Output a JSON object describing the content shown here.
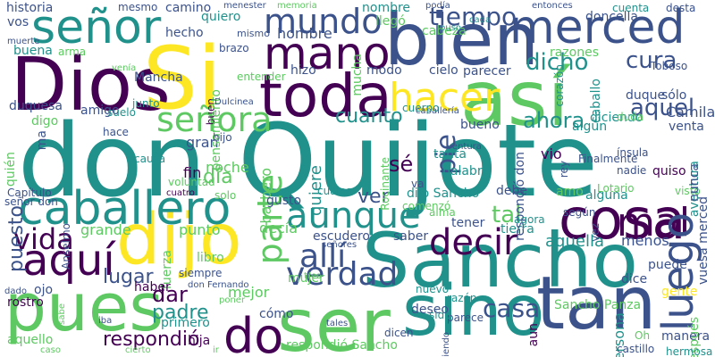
{
  "palette": {
    "background": "#ffffff",
    "colors": [
      "#440154",
      "#3b528b",
      "#21918c",
      "#5ec962",
      "#fde725"
    ]
  },
  "words": [
    {
      "text": "don Quijote",
      "color": "#21918c"
    },
    {
      "text": "Sancho",
      "color": "#21918c"
    },
    {
      "text": "Dios",
      "color": "#440154"
    },
    {
      "text": "Si",
      "color": "#fde725"
    },
    {
      "text": "bien",
      "color": "#3b528b"
    },
    {
      "text": "así",
      "color": "#5ec962"
    },
    {
      "text": "toda",
      "color": "#440154"
    },
    {
      "text": "señor",
      "color": "#21918c"
    },
    {
      "text": "merced",
      "color": "#3b528b"
    },
    {
      "text": "mano",
      "color": "#440154"
    },
    {
      "text": "mundo",
      "color": "#3b528b"
    },
    {
      "text": "dijo",
      "color": "#fde725"
    },
    {
      "text": "pues",
      "color": "#5ec962"
    },
    {
      "text": "ser",
      "color": "#5ec962"
    },
    {
      "text": "sino",
      "color": "#21918c"
    },
    {
      "text": "tan",
      "color": "#3b528b"
    },
    {
      "text": "cosa",
      "color": "#440154"
    },
    {
      "text": "caballero",
      "color": "#21918c"
    },
    {
      "text": "aunque",
      "color": "#21918c"
    },
    {
      "text": "hacer",
      "color": "#fde725"
    },
    {
      "text": "señora",
      "color": "#5ec962"
    },
    {
      "text": "aquí",
      "color": "#440154"
    },
    {
      "text": "vida",
      "color": "#440154"
    },
    {
      "text": "decir",
      "color": "#440154"
    },
    {
      "text": "verdad",
      "color": "#3b528b"
    },
    {
      "text": "allí",
      "color": "#3b528b"
    },
    {
      "text": "mal",
      "color": "#440154"
    },
    {
      "text": "luego",
      "color": "#3b528b"
    },
    {
      "text": "do",
      "color": "#440154"
    },
    {
      "text": "tiempo",
      "color": "#3b528b"
    },
    {
      "text": "parte",
      "color": "#5ec962"
    },
    {
      "text": "dicho",
      "color": "#21918c"
    },
    {
      "text": "cura",
      "color": "#3b528b"
    },
    {
      "text": "aquel",
      "color": "#3b528b"
    },
    {
      "text": "ahora",
      "color": "#21918c"
    },
    {
      "text": "cuanto",
      "color": "#21918c"
    },
    {
      "text": "pie",
      "color": "#3b528b"
    },
    {
      "text": "puesto",
      "color": "#3b528b"
    },
    {
      "text": "quiere",
      "color": "#21918c"
    },
    {
      "text": "sé",
      "color": "#440154"
    },
    {
      "text": "ver",
      "color": "#3b528b"
    },
    {
      "text": "tal",
      "color": "#5ec962"
    },
    {
      "text": "casa",
      "color": "#3b528b"
    },
    {
      "text": "padre",
      "color": "#21918c"
    },
    {
      "text": "dar",
      "color": "#440154"
    },
    {
      "text": "respondió",
      "color": "#440154"
    },
    {
      "text": "día",
      "color": "#5ec962"
    },
    {
      "text": "lugar",
      "color": "#3b528b"
    },
    {
      "text": "historia",
      "color": "#3b528b"
    },
    {
      "text": "vos",
      "color": "#3b528b"
    },
    {
      "text": "buena",
      "color": "#21918c"
    },
    {
      "text": "duquesa",
      "color": "#3b528b"
    },
    {
      "text": "digo",
      "color": "#5ec962"
    },
    {
      "text": "hecho",
      "color": "#3b528b"
    },
    {
      "text": "hombre",
      "color": "#3b528b"
    },
    {
      "text": "hizo",
      "color": "#3b528b"
    },
    {
      "text": "modo",
      "color": "#3b528b"
    },
    {
      "text": "cielo",
      "color": "#3b528b"
    },
    {
      "text": "parecer",
      "color": "#3b528b"
    },
    {
      "text": "quiero",
      "color": "#21918c"
    },
    {
      "text": "camino",
      "color": "#3b528b"
    },
    {
      "text": "mesmo",
      "color": "#3b528b"
    },
    {
      "text": "mismo",
      "color": "#3b528b"
    },
    {
      "text": "nombre",
      "color": "#21918c"
    },
    {
      "text": "llegó",
      "color": "#5ec962"
    },
    {
      "text": "doncella",
      "color": "#3b528b"
    },
    {
      "text": "cuenta",
      "color": "#21918c"
    },
    {
      "text": "desta",
      "color": "#3b528b"
    },
    {
      "text": "razones",
      "color": "#5ec962"
    },
    {
      "text": "caballo",
      "color": "#21918c"
    },
    {
      "text": "duque",
      "color": "#3b528b"
    },
    {
      "text": "sólo",
      "color": "#3b528b"
    },
    {
      "text": "bueno",
      "color": "#3b528b"
    },
    {
      "text": "tanta",
      "color": "#21918c"
    },
    {
      "text": "palabra",
      "color": "#21918c"
    },
    {
      "text": "vio",
      "color": "#440154"
    },
    {
      "text": "algún",
      "color": "#21918c"
    },
    {
      "text": "dijo Sancho",
      "color": "#21918c"
    },
    {
      "text": "debe",
      "color": "#3b528b"
    },
    {
      "text": "amo",
      "color": "#5ec962"
    },
    {
      "text": "alguna",
      "color": "#21918c"
    },
    {
      "text": "tierra",
      "color": "#21918c"
    },
    {
      "text": "tener",
      "color": "#3b528b"
    },
    {
      "text": "aquella",
      "color": "#21918c"
    },
    {
      "text": "menos",
      "color": "#3b528b"
    },
    {
      "text": "noche",
      "color": "#5ec962"
    },
    {
      "text": "gran",
      "color": "#3b528b"
    },
    {
      "text": "fin",
      "color": "#440154"
    },
    {
      "text": "barbero",
      "color": "#5ec962"
    },
    {
      "text": "gusto",
      "color": "#3b528b"
    },
    {
      "text": "grande",
      "color": "#5ec962"
    },
    {
      "text": "punto",
      "color": "#5ec962"
    },
    {
      "text": "decía",
      "color": "#5ec962"
    },
    {
      "text": "escudero",
      "color": "#3b528b"
    },
    {
      "text": "saber",
      "color": "#3b528b"
    },
    {
      "text": "libro",
      "color": "#5ec962"
    },
    {
      "text": "fuerza",
      "color": "#5ec962"
    },
    {
      "text": "haber",
      "color": "#440154"
    },
    {
      "text": "mejor",
      "color": "#5ec962"
    },
    {
      "text": "mujer",
      "color": "#5ec962"
    },
    {
      "text": "deseo",
      "color": "#3b528b"
    },
    {
      "text": "primero",
      "color": "#21918c"
    },
    {
      "text": "cómo",
      "color": "#3b528b"
    },
    {
      "text": "hija",
      "color": "#440154"
    },
    {
      "text": "aquello",
      "color": "#5ec962"
    },
    {
      "text": "rostro",
      "color": "#440154"
    },
    {
      "text": "ojo",
      "color": "#3b528b"
    },
    {
      "text": "Sancho Panza",
      "color": "#5ec962"
    },
    {
      "text": "aun",
      "color": "#440154"
    },
    {
      "text": "dice",
      "color": "#3b528b"
    },
    {
      "text": "puede",
      "color": "#3b528b"
    },
    {
      "text": "gente",
      "color": "#fde725"
    },
    {
      "text": "persona",
      "color": "#21918c"
    },
    {
      "text": "parece",
      "color": "#3b528b"
    },
    {
      "text": "manera",
      "color": "#3b528b"
    },
    {
      "text": "castillo",
      "color": "#3b528b"
    },
    {
      "text": "después",
      "color": "#5ec962"
    },
    {
      "text": "vuesa merced",
      "color": "#3b528b"
    },
    {
      "text": "aventura",
      "color": "#21918c"
    },
    {
      "text": "respondió Sancho",
      "color": "#5ec962"
    },
    {
      "text": "respondió don",
      "color": "#3b528b"
    },
    {
      "text": "señor don",
      "color": "#3b528b"
    },
    {
      "text": "quién",
      "color": "#5ec962"
    },
    {
      "text": "amigo",
      "color": "#3b528b"
    },
    {
      "text": "ma",
      "color": "#3b528b"
    },
    {
      "text": "cabeza",
      "color": "#5ec962"
    },
    {
      "text": "buen",
      "color": "#440154"
    },
    {
      "text": "Mancha",
      "color": "#3b528b"
    },
    {
      "text": "mucha",
      "color": "#5ec962"
    },
    {
      "text": "Rocinante",
      "color": "#5ec962"
    },
    {
      "text": "pensamiento",
      "color": "#5ec962"
    },
    {
      "text": "Toboso",
      "color": "#3b528b"
    },
    {
      "text": "diciendo",
      "color": "#21918c"
    },
    {
      "text": "duda",
      "color": "#5ec962"
    },
    {
      "text": "Camila",
      "color": "#3b528b"
    },
    {
      "text": "venta",
      "color": "#3b528b"
    },
    {
      "text": "quiso",
      "color": "#440154"
    },
    {
      "text": "visto",
      "color": "#5ec962"
    },
    {
      "text": "nunca",
      "color": "#3b528b"
    },
    {
      "text": "Lotario",
      "color": "#5ec962"
    },
    {
      "text": "según",
      "color": "#3b528b"
    },
    {
      "text": "agora",
      "color": "#21918c"
    },
    {
      "text": "alma",
      "color": "#5ec962"
    },
    {
      "text": "nuevo",
      "color": "#21918c"
    },
    {
      "text": "razón",
      "color": "#21918c"
    },
    {
      "text": "sido",
      "color": "#21918c"
    },
    {
      "text": "dicen",
      "color": "#3b528b"
    },
    {
      "text": "viendo",
      "color": "#3b528b"
    },
    {
      "text": "Oh",
      "color": "#5ec962"
    },
    {
      "text": "hermosa",
      "color": "#21918c"
    },
    {
      "text": "ínsula",
      "color": "#3b528b"
    },
    {
      "text": "nadie",
      "color": "#3b528b"
    },
    {
      "text": "Finalmente",
      "color": "#3b528b"
    },
    {
      "text": "rey",
      "color": "#3b528b"
    },
    {
      "text": "ventura",
      "color": "#3b528b"
    },
    {
      "text": "vez",
      "color": "#3b528b"
    },
    {
      "text": "corazón",
      "color": "#21918c"
    },
    {
      "text": "cada",
      "color": "#21918c"
    },
    {
      "text": "puso",
      "color": "#21918c"
    },
    {
      "text": "podía",
      "color": "#3b528b"
    },
    {
      "text": "entonces",
      "color": "#3b528b"
    },
    {
      "text": "menester",
      "color": "#3b528b"
    },
    {
      "text": "memoria",
      "color": "#5ec962"
    },
    {
      "text": "brazo",
      "color": "#3b528b"
    },
    {
      "text": "entender",
      "color": "#5ec962"
    },
    {
      "text": "Dulcinea",
      "color": "#3b528b"
    },
    {
      "text": "junto",
      "color": "#21918c"
    },
    {
      "text": "suelo",
      "color": "#21918c"
    },
    {
      "text": "hace",
      "color": "#3b528b"
    },
    {
      "text": "causa",
      "color": "#21918c"
    },
    {
      "text": "Capítulo",
      "color": "#3b528b"
    },
    {
      "text": "Anselmo",
      "color": "#3b528b"
    },
    {
      "text": "arma",
      "color": "#5ec962"
    },
    {
      "text": "venía",
      "color": "#5ec962"
    },
    {
      "text": "muerte",
      "color": "#3b528b"
    },
    {
      "text": "hijo",
      "color": "#3b528b"
    },
    {
      "text": "voluntad",
      "color": "#5ec962"
    },
    {
      "text": "cuatro",
      "color": "#440154"
    },
    {
      "text": "solo",
      "color": "#5ec962"
    },
    {
      "text": "cuales",
      "color": "#21918c"
    },
    {
      "text": "va",
      "color": "#3b528b"
    },
    {
      "text": "comenzó",
      "color": "#5ec962"
    },
    {
      "text": "caballería",
      "color": "#3b528b"
    },
    {
      "text": "cuerpo",
      "color": "#21918c"
    },
    {
      "text": "señores",
      "color": "#3b528b"
    },
    {
      "text": "siempre",
      "color": "#3b528b"
    },
    {
      "text": "don Fernando",
      "color": "#3b528b"
    },
    {
      "text": "tres",
      "color": "#5ec962"
    },
    {
      "text": "poner",
      "color": "#5ec962"
    },
    {
      "text": "tales",
      "color": "#3b528b"
    },
    {
      "text": "iba",
      "color": "#3b528b"
    },
    {
      "text": "sabe",
      "color": "#5ec962"
    },
    {
      "text": "dado",
      "color": "#3b528b"
    },
    {
      "text": "caso",
      "color": "#5ec962"
    },
    {
      "text": "cierto",
      "color": "#5ec962"
    },
    {
      "text": "ir",
      "color": "#5ec962"
    }
  ]
}
